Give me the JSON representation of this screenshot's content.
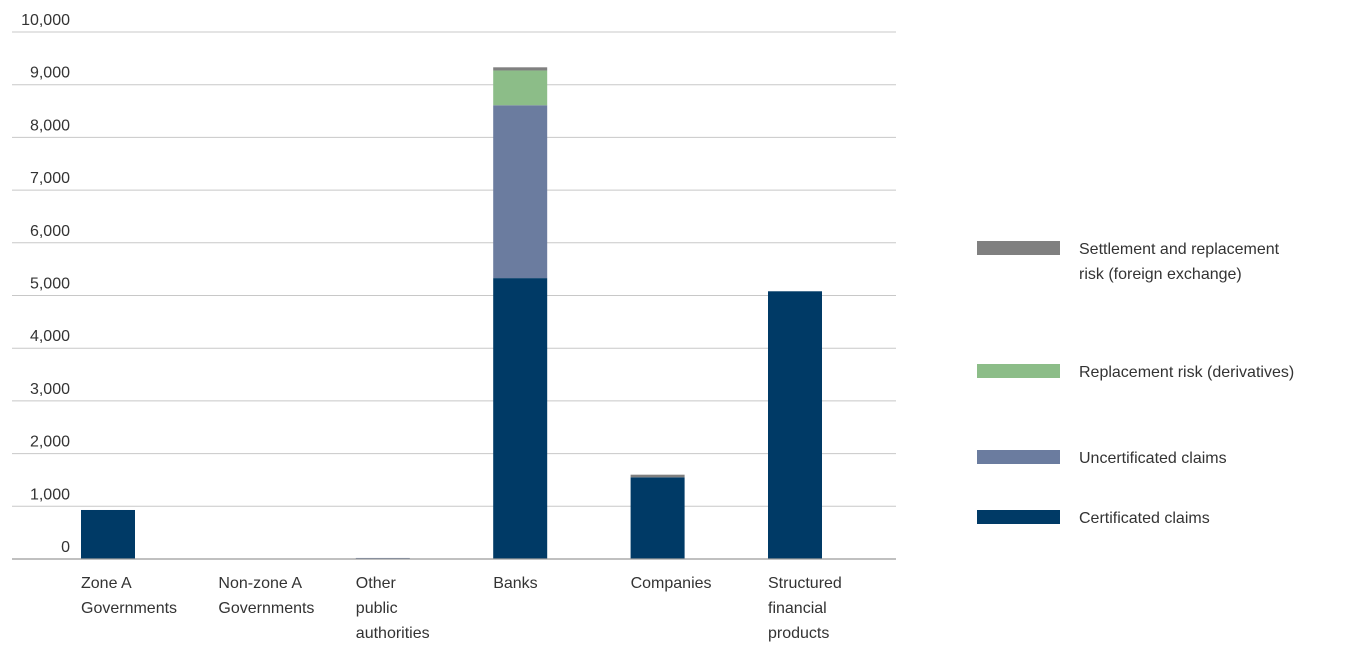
{
  "chart_data": {
    "type": "bar",
    "stacked": true,
    "categories": [
      [
        "Zone A",
        "Governments"
      ],
      [
        "Non-zone A",
        "Governments"
      ],
      [
        "Other",
        "public",
        "authorities"
      ],
      [
        "Banks"
      ],
      [
        "Companies"
      ],
      [
        "Structured",
        "financial",
        "products"
      ]
    ],
    "series": [
      {
        "name": "Certificated claims",
        "color": "#003a66",
        "values": [
          930,
          0,
          0,
          5330,
          1550,
          5080
        ]
      },
      {
        "name": "Uncertificated claims",
        "color": "#6b7c9f",
        "values": [
          0,
          0,
          20,
          3280,
          0,
          0
        ]
      },
      {
        "name": "Replacement risk (derivatives)",
        "color": "#8cbd88",
        "values": [
          0,
          0,
          0,
          660,
          0,
          0
        ]
      },
      {
        "name": "Settlement and replacement risk (foreign exchange)",
        "color": "#808080",
        "values": [
          0,
          0,
          0,
          60,
          50,
          0
        ]
      }
    ],
    "legend": {
      "position": "right",
      "order": [
        [
          "Settlement and replacement",
          "risk (foreign exchange)"
        ],
        [
          "Replacement risk (derivatives)"
        ],
        [
          "Uncertificated claims"
        ],
        [
          "Certificated claims"
        ]
      ]
    },
    "y_ticks": [
      "0",
      "1,000",
      "2,000",
      "3,000",
      "4,000",
      "5,000",
      "6,000",
      "7,000",
      "8,000",
      "9,000",
      "10,000"
    ],
    "ylim": [
      0,
      10000
    ],
    "grid": true,
    "title": "",
    "xlabel": "",
    "ylabel": ""
  }
}
